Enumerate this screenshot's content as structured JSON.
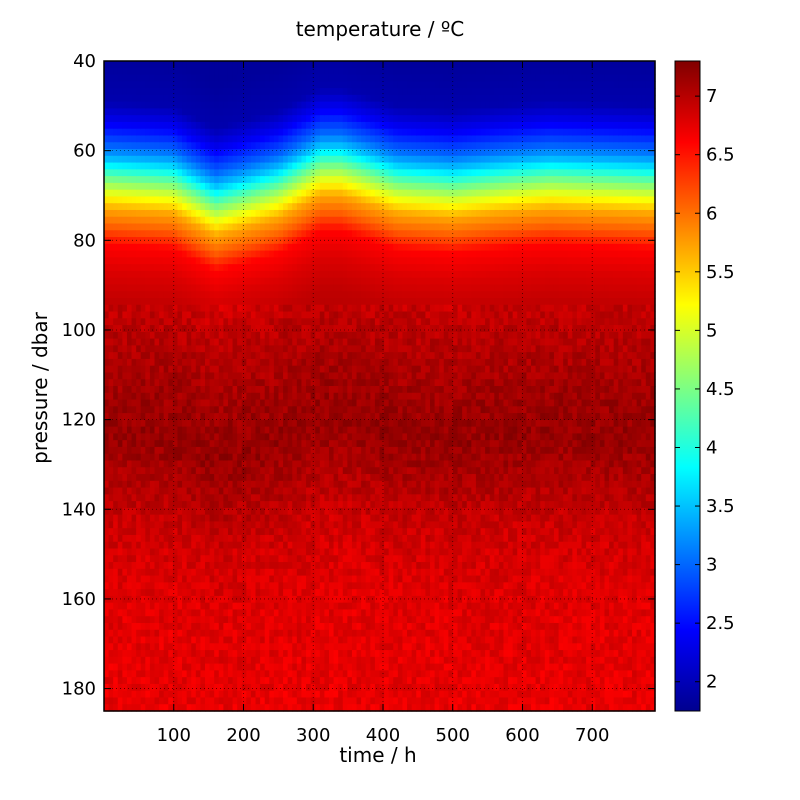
{
  "chart_data": {
    "type": "heatmap",
    "title": "temperature / ºC",
    "xlabel": "time / h",
    "ylabel": "pressure / dbar",
    "xlim": [
      0,
      790
    ],
    "ylim": [
      185,
      40
    ],
    "x_ticks": [
      100,
      200,
      300,
      400,
      500,
      600,
      700
    ],
    "y_ticks": [
      40,
      60,
      80,
      100,
      120,
      140,
      160,
      180
    ],
    "grid": true,
    "colorbar": {
      "range": [
        1.75,
        7.3
      ],
      "ticks": [
        2,
        2.5,
        3,
        3.5,
        4,
        4.5,
        5,
        5.5,
        6,
        6.5,
        7
      ],
      "colormap": "jet",
      "placement": "right"
    },
    "depth_profile": {
      "pressure": [
        40,
        50,
        55,
        60,
        63,
        67,
        70,
        74,
        78,
        82,
        88,
        95,
        105,
        115,
        125,
        135,
        145,
        160,
        185
      ],
      "temperature": [
        1.9,
        2.0,
        2.4,
        3.0,
        3.5,
        4.4,
        5.0,
        5.7,
        6.1,
        6.6,
        6.8,
        6.95,
        7.05,
        7.15,
        7.2,
        7.05,
        6.9,
        6.8,
        6.75
      ]
    },
    "layer_shift": {
      "time": [
        0,
        100,
        160,
        250,
        310,
        340,
        420,
        500,
        560,
        640,
        790
      ],
      "offset_dbar": [
        1,
        0,
        -5,
        -1,
        4,
        4,
        0,
        -1,
        0,
        1,
        0
      ]
    }
  }
}
